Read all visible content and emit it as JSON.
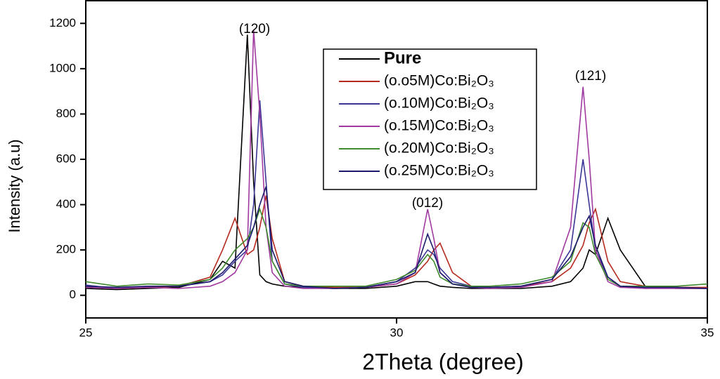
{
  "chart_data": {
    "type": "line",
    "xlabel": "2Theta (degree)",
    "ylabel": "Intensity (a.u)",
    "annotations": [
      "(120)",
      "(012)",
      "(121)"
    ],
    "x": [
      25,
      25.5,
      26,
      26.5,
      27,
      27.2,
      27.4,
      27.6,
      27.7,
      27.8,
      27.9,
      28.0,
      28.2,
      28.5,
      29,
      29.5,
      30,
      30.3,
      30.5,
      30.6,
      30.7,
      30.9,
      31.2,
      31.5,
      32,
      32.5,
      32.8,
      33.0,
      33.1,
      33.2,
      33.4,
      33.6,
      34,
      34.5,
      35
    ],
    "series": [
      {
        "name": "Pure",
        "color": "#000000",
        "values": [
          30,
          25,
          30,
          35,
          70,
          150,
          120,
          1150,
          500,
          90,
          60,
          50,
          40,
          35,
          30,
          30,
          40,
          60,
          60,
          50,
          40,
          35,
          30,
          30,
          30,
          40,
          60,
          120,
          200,
          180,
          340,
          200,
          40,
          30,
          30
        ]
      },
      {
        "name": "(o.o5M)Co:Bi₂O₃",
        "color": "#b52a1e",
        "values": [
          40,
          30,
          35,
          40,
          80,
          200,
          340,
          180,
          200,
          300,
          440,
          250,
          60,
          40,
          35,
          35,
          50,
          90,
          150,
          200,
          230,
          100,
          40,
          35,
          40,
          60,
          120,
          220,
          320,
          380,
          150,
          60,
          40,
          35,
          35
        ]
      },
      {
        "name": "(o.10M)Co:Bi₂O₃",
        "color": "#3b3596",
        "values": [
          45,
          30,
          40,
          40,
          60,
          90,
          150,
          200,
          400,
          860,
          500,
          150,
          50,
          35,
          30,
          35,
          60,
          120,
          200,
          180,
          120,
          60,
          40,
          35,
          40,
          70,
          200,
          600,
          400,
          200,
          80,
          40,
          30,
          35,
          30
        ]
      },
      {
        "name": "(o.15M)Co:Bi₂O₃",
        "color": "#a03aa0",
        "values": [
          35,
          30,
          35,
          30,
          40,
          60,
          100,
          200,
          1170,
          800,
          300,
          100,
          40,
          30,
          30,
          35,
          50,
          100,
          380,
          250,
          100,
          50,
          35,
          30,
          35,
          60,
          300,
          920,
          600,
          200,
          60,
          35,
          30,
          30,
          30
        ]
      },
      {
        "name": "(o.20M)Co:Bi₂O₃",
        "color": "#3f8a2c",
        "values": [
          60,
          40,
          50,
          45,
          70,
          120,
          200,
          250,
          300,
          380,
          300,
          150,
          50,
          40,
          40,
          40,
          70,
          110,
          180,
          150,
          80,
          50,
          40,
          40,
          50,
          80,
          150,
          320,
          300,
          180,
          70,
          40,
          40,
          40,
          50
        ]
      },
      {
        "name": "(o.25M)Co:Bi₂O₃",
        "color": "#1c1a6c",
        "values": [
          40,
          35,
          40,
          40,
          60,
          100,
          160,
          220,
          300,
          400,
          480,
          200,
          60,
          40,
          30,
          35,
          60,
          100,
          270,
          200,
          100,
          50,
          35,
          35,
          40,
          70,
          170,
          300,
          350,
          220,
          80,
          40,
          35,
          35,
          30
        ]
      }
    ],
    "xlim": [
      25,
      35
    ],
    "xticks": [
      25,
      30,
      35
    ],
    "ylim": [
      -100,
      1300
    ],
    "yticks": [
      0,
      200,
      400,
      600,
      800,
      1000,
      1200
    ]
  }
}
